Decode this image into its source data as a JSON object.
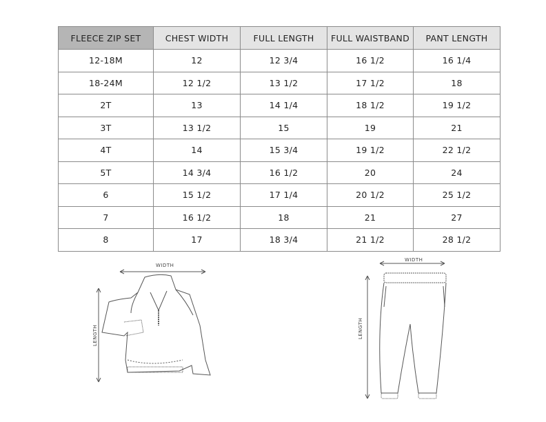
{
  "table": {
    "headers": [
      "FLEECE ZIP SET",
      "CHEST WIDTH",
      "FULL LENGTH",
      "FULL WAISTBAND",
      "PANT LENGTH"
    ],
    "rows": [
      [
        "12-18M",
        "12",
        "12 3/4",
        "16 1/2",
        "16 1/4"
      ],
      [
        "18-24M",
        "12 1/2",
        "13 1/2",
        "17 1/2",
        "18"
      ],
      [
        "2T",
        "13",
        "14 1/4",
        "18 1/2",
        "19 1/2"
      ],
      [
        "3T",
        "13 1/2",
        "15",
        "19",
        "21"
      ],
      [
        "4T",
        "14",
        "15 3/4",
        "19 1/2",
        "22 1/2"
      ],
      [
        "5T",
        "14 3/4",
        "16 1/2",
        "20",
        "24"
      ],
      [
        "6",
        "15 1/2",
        "17 1/4",
        "20 1/2",
        "25 1/2"
      ],
      [
        "7",
        "16 1/2",
        "18",
        "21",
        "27"
      ],
      [
        "8",
        "17",
        "18 3/4",
        "21 1/2",
        "28 1/2"
      ]
    ]
  },
  "diagrams": {
    "top": {
      "width_label": "WIDTH",
      "length_label": "LENGTH"
    },
    "pants": {
      "width_label": "WIDTH",
      "length_label": "LENGTH"
    }
  }
}
